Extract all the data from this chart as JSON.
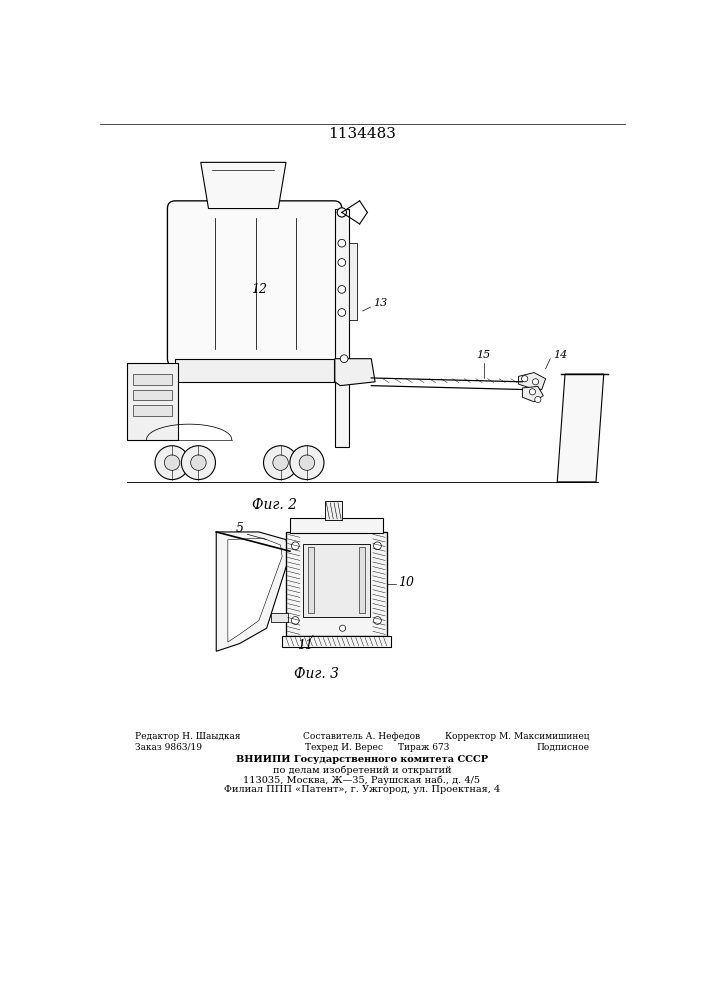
{
  "title": "1134483",
  "fig2_label": "Фиг. 2",
  "fig3_label": "Фиг. 3",
  "background_color": "#ffffff",
  "line_color": "#000000"
}
